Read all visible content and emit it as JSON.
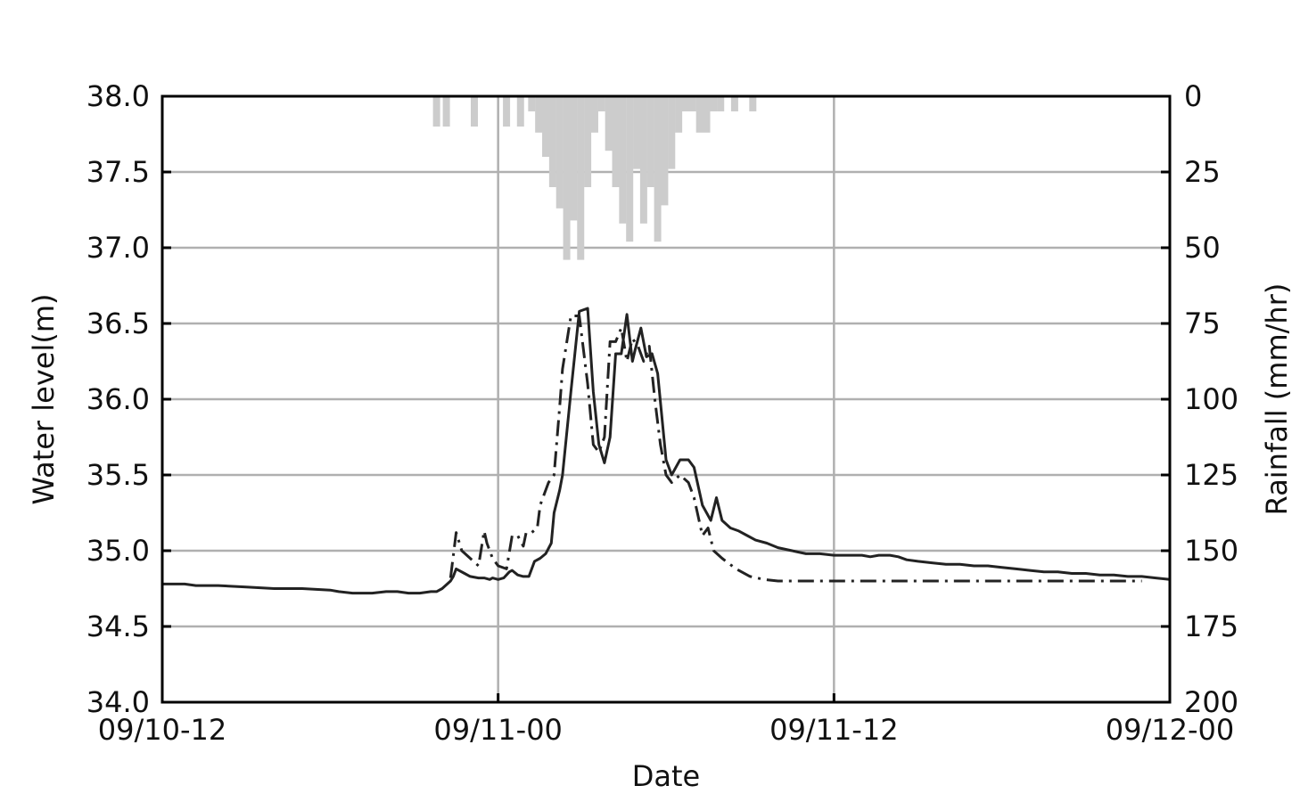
{
  "chart_data": {
    "type": "line",
    "xlabel": "Date",
    "ylabel_left": "Water level(m)",
    "ylabel_right": "Rainfall (mm/hr)",
    "x_ticks": [
      "09/10-12",
      "09/11-00",
      "09/11-12",
      "09/12-00"
    ],
    "x_range_hours": [
      0,
      36
    ],
    "y_left_range": [
      34.0,
      38.0
    ],
    "y_left_ticks": [
      "34.0",
      "34.5",
      "35.0",
      "35.5",
      "36.0",
      "36.5",
      "37.0",
      "37.5",
      "38.0"
    ],
    "y_right_range": [
      0,
      200
    ],
    "y_right_inverted": true,
    "y_right_ticks": [
      "0",
      "25",
      "50",
      "75",
      "100",
      "125",
      "150",
      "175",
      "200"
    ],
    "grid": true,
    "series": [
      {
        "style": "solid",
        "color": "#222222",
        "x": [
          0,
          0.4,
          0.8,
          1.2,
          2,
          3,
          4,
          5,
          6,
          6.3,
          6.8,
          7.5,
          8,
          8.4,
          8.8,
          9.2,
          9.6,
          9.8,
          10,
          10.3,
          10.4,
          10.5,
          10.8,
          11,
          11.3,
          11.5,
          11.7,
          11.8,
          12,
          12.2,
          12.4,
          12.5,
          12.7,
          12.9,
          13.1,
          13.3,
          13.5,
          13.7,
          13.9,
          14,
          14.2,
          14.3,
          14.6,
          14.9,
          15.2,
          15.4,
          15.6,
          15.8,
          16,
          16.2,
          16.4,
          16.6,
          16.8,
          16.9,
          17.1,
          17.3,
          17.5,
          17.7,
          18,
          18.2,
          18.5,
          18.8,
          19,
          19.3,
          19.6,
          19.8,
          20,
          20.3,
          20.6,
          20.9,
          21.2,
          21.6,
          22,
          22.5,
          23,
          23.5,
          24,
          24.5,
          25,
          25.3,
          25.6,
          26,
          26.3,
          26.6,
          27,
          27.5,
          28,
          28.5,
          29,
          29.5,
          30,
          30.5,
          31,
          31.5,
          32,
          32.5,
          33,
          33.5,
          34,
          34.5,
          35,
          35.5,
          36
        ],
        "y": [
          34.78,
          34.78,
          34.78,
          34.77,
          34.77,
          34.76,
          34.75,
          34.75,
          34.74,
          34.73,
          34.72,
          34.72,
          34.73,
          34.73,
          34.72,
          34.72,
          34.73,
          34.73,
          34.75,
          34.8,
          34.83,
          34.88,
          34.85,
          34.83,
          34.82,
          34.82,
          34.81,
          34.82,
          34.81,
          34.82,
          34.86,
          34.87,
          34.84,
          34.83,
          34.83,
          34.93,
          34.95,
          34.98,
          35.05,
          35.25,
          35.4,
          35.5,
          36.05,
          36.58,
          36.6,
          36.05,
          35.7,
          35.58,
          35.75,
          36.3,
          36.3,
          36.56,
          36.25,
          36.33,
          36.47,
          36.28,
          36.3,
          36.17,
          35.6,
          35.5,
          35.6,
          35.6,
          35.55,
          35.3,
          35.2,
          35.35,
          35.2,
          35.15,
          35.13,
          35.1,
          35.07,
          35.05,
          35.02,
          35.0,
          34.98,
          34.98,
          34.97,
          34.97,
          34.97,
          34.96,
          34.97,
          34.97,
          34.96,
          34.94,
          34.93,
          34.92,
          34.91,
          34.91,
          34.9,
          34.9,
          34.89,
          34.88,
          34.87,
          34.86,
          34.86,
          34.85,
          34.85,
          34.84,
          34.84,
          34.83,
          34.83,
          34.82,
          34.81
        ]
      },
      {
        "style": "dash-dot",
        "color": "#222222",
        "x": [
          10.3,
          10.5,
          10.7,
          11,
          11.3,
          11.5,
          11.6,
          11.8,
          12,
          12.3,
          12.5,
          12.7,
          12.9,
          13,
          13.2,
          13.4,
          13.5,
          13.6,
          13.8,
          14,
          14.2,
          14.3,
          14.6,
          14.9,
          15.2,
          15.4,
          15.6,
          15.8,
          16,
          16.2,
          16.4,
          16.6,
          16.8,
          17,
          17.2,
          17.4,
          17.6,
          17.8,
          18,
          18.2,
          18.5,
          18.8,
          19,
          19.3,
          19.5,
          19.7,
          20,
          20.5,
          21,
          21.5,
          22,
          23,
          24,
          26,
          28,
          30,
          32,
          34,
          35
        ],
        "y": [
          34.82,
          35.12,
          35.0,
          34.95,
          34.9,
          35.13,
          35.05,
          34.95,
          34.9,
          34.88,
          35.1,
          35.1,
          35.03,
          35.12,
          35.12,
          35.15,
          35.3,
          35.35,
          35.45,
          35.5,
          35.95,
          36.2,
          36.55,
          36.55,
          36.1,
          35.7,
          35.65,
          35.75,
          36.38,
          36.38,
          36.47,
          36.25,
          36.4,
          36.35,
          36.25,
          36.35,
          36.0,
          35.7,
          35.5,
          35.45,
          35.5,
          35.45,
          35.35,
          35.1,
          35.15,
          35.0,
          34.95,
          34.88,
          34.83,
          34.81,
          34.8,
          34.8,
          34.8,
          34.8,
          34.8,
          34.8,
          34.8,
          34.8,
          34.8
        ]
      }
    ],
    "rainfall": {
      "color": "#cccccc",
      "bars": [
        {
          "x": 9.8,
          "value": 10
        },
        {
          "x": 10.15,
          "value": 10
        },
        {
          "x": 11.15,
          "value": 10
        },
        {
          "x": 12.3,
          "value": 10
        },
        {
          "x": 12.8,
          "value": 10
        },
        {
          "x": 13.2,
          "value": 5
        },
        {
          "x": 13.45,
          "value": 12
        },
        {
          "x": 13.7,
          "value": 20
        },
        {
          "x": 13.95,
          "value": 30
        },
        {
          "x": 14.2,
          "value": 37
        },
        {
          "x": 14.45,
          "value": 54
        },
        {
          "x": 14.7,
          "value": 41
        },
        {
          "x": 14.95,
          "value": 54
        },
        {
          "x": 15.2,
          "value": 30
        },
        {
          "x": 15.45,
          "value": 12
        },
        {
          "x": 15.7,
          "value": 5
        },
        {
          "x": 15.95,
          "value": 18
        },
        {
          "x": 16.2,
          "value": 30
        },
        {
          "x": 16.45,
          "value": 42
        },
        {
          "x": 16.7,
          "value": 48
        },
        {
          "x": 16.95,
          "value": 24
        },
        {
          "x": 17.2,
          "value": 42
        },
        {
          "x": 17.45,
          "value": 30
        },
        {
          "x": 17.7,
          "value": 48
        },
        {
          "x": 17.95,
          "value": 36
        },
        {
          "x": 18.2,
          "value": 24
        },
        {
          "x": 18.45,
          "value": 12
        },
        {
          "x": 18.7,
          "value": 5
        },
        {
          "x": 18.95,
          "value": 5
        },
        {
          "x": 19.2,
          "value": 12
        },
        {
          "x": 19.45,
          "value": 12
        },
        {
          "x": 19.7,
          "value": 5
        },
        {
          "x": 19.95,
          "value": 5
        },
        {
          "x": 20.45,
          "value": 5
        },
        {
          "x": 21.1,
          "value": 5
        }
      ]
    }
  }
}
